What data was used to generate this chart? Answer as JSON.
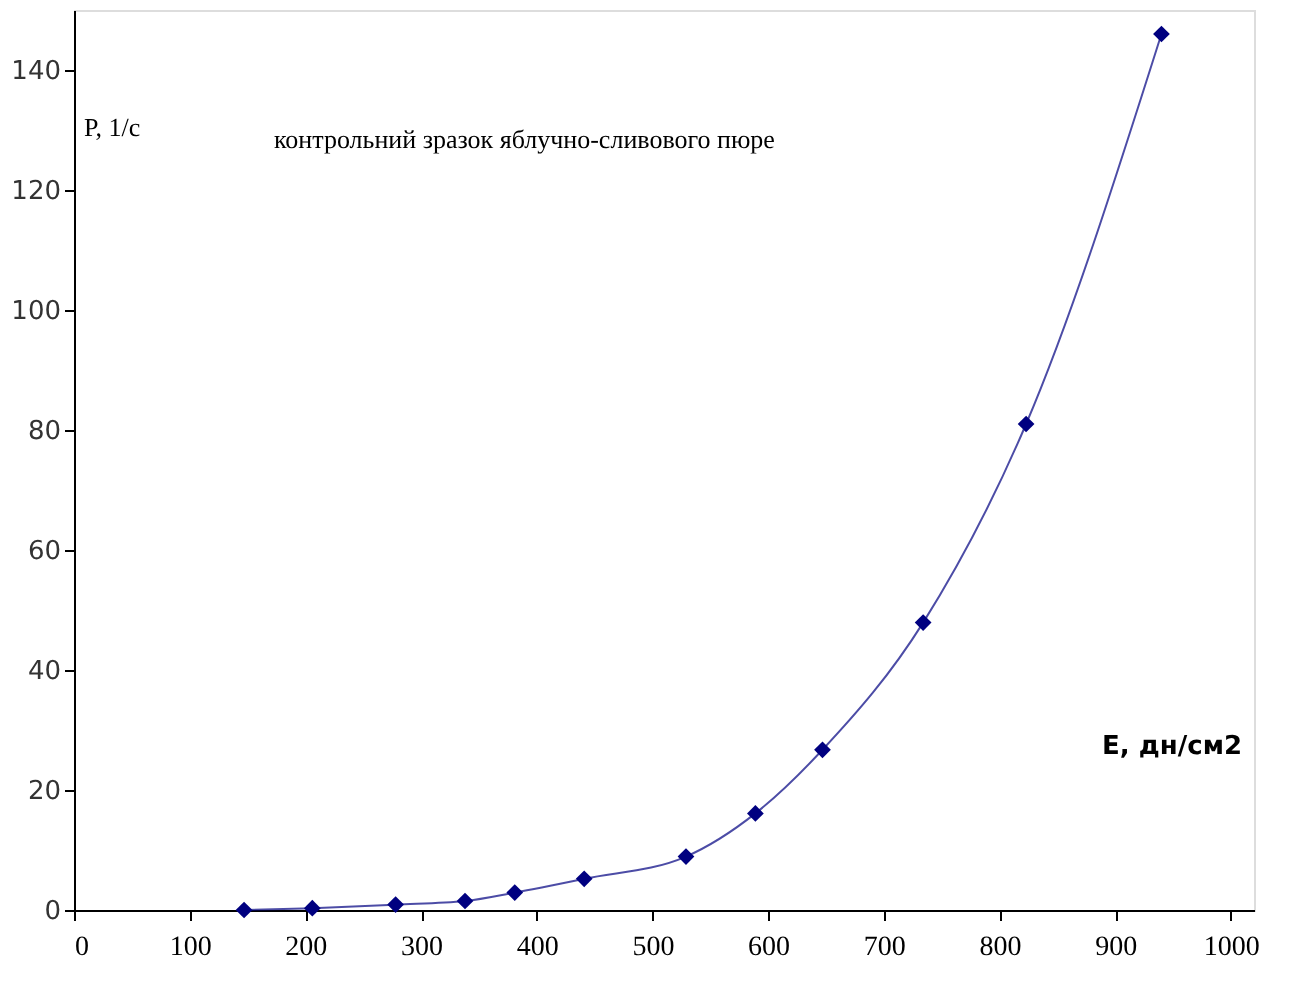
{
  "chart_data": {
    "type": "line",
    "title": "контрольний зразок яблучно-сливового пюре",
    "xlabel": "E, дн/см2",
    "ylabel": "P, 1/c",
    "x": [
      147,
      206,
      278,
      338,
      381,
      441,
      529,
      589,
      647,
      734,
      823,
      940
    ],
    "series": [
      {
        "color": "#000080",
        "values": [
          0,
          0.3,
          0.9,
          1.5,
          2.9,
          5.2,
          8.9,
          16.1,
          26.7,
          47.9,
          81,
          146
        ]
      }
    ],
    "xlim": [
      0,
      1020
    ],
    "xticks": [
      0,
      100,
      200,
      300,
      400,
      500,
      600,
      700,
      800,
      900,
      1000
    ],
    "ylim": [
      0,
      150
    ],
    "yticks": [
      0,
      20,
      40,
      60,
      80,
      100,
      120,
      140
    ],
    "grid": false,
    "marker": "diamond",
    "line_style": "solid",
    "legend": false
  }
}
